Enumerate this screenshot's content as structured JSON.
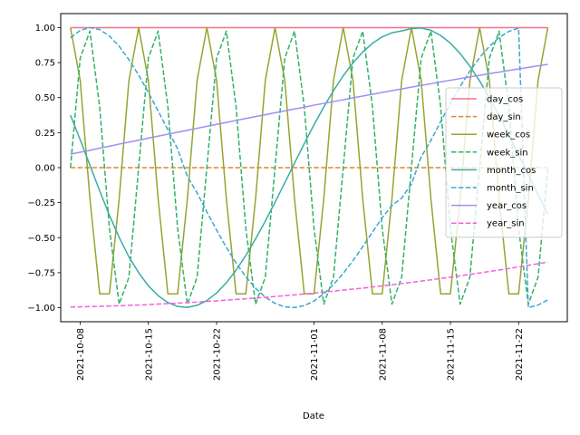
{
  "chart_data": {
    "type": "line",
    "title": "",
    "xlabel": "Date",
    "ylabel": "",
    "x_start": "2021-10-07",
    "x_end": "2021-11-25",
    "xlim": [
      "2021-10-06",
      "2021-11-27"
    ],
    "ylim": [
      -1.1,
      1.1
    ],
    "x_ticks": [
      "2021-10-08",
      "2021-10-15",
      "2021-10-22",
      "2021-11-01",
      "2021-11-08",
      "2021-11-15",
      "2021-11-22"
    ],
    "y_ticks": [
      "1.00",
      "0.75",
      "0.50",
      "0.25",
      "0.00",
      "−0.25",
      "−0.50",
      "−0.75",
      "−1.00"
    ],
    "grid": false,
    "legend_position": "center-right",
    "series": [
      {
        "name": "day_cos",
        "color": "#f77189",
        "dash": "solid",
        "values": [
          1,
          1,
          1,
          1,
          1,
          1,
          1,
          1,
          1,
          1,
          1,
          1,
          1,
          1,
          1,
          1,
          1,
          1,
          1,
          1,
          1,
          1,
          1,
          1,
          1,
          1,
          1,
          1,
          1,
          1,
          1,
          1,
          1,
          1,
          1,
          1,
          1,
          1,
          1,
          1,
          1,
          1,
          1,
          1,
          1,
          1,
          1,
          1,
          1,
          1
        ]
      },
      {
        "name": "day_sin",
        "color": "#dc8932",
        "dash": "dashed",
        "values": [
          0,
          0,
          0,
          0,
          0,
          0,
          0,
          0,
          0,
          0,
          0,
          0,
          0,
          0,
          0,
          0,
          0,
          0,
          0,
          0,
          0,
          0,
          0,
          0,
          0,
          0,
          0,
          0,
          0,
          0,
          0,
          0,
          0,
          0,
          0,
          0,
          0,
          0,
          0,
          0,
          0,
          0,
          0,
          0,
          0,
          0,
          0,
          0,
          0,
          0
        ]
      },
      {
        "name": "week_cos",
        "color": "#97a431",
        "dash": "solid",
        "values": [
          1.0,
          0.623,
          -0.223,
          -0.901,
          -0.901,
          -0.223,
          0.623,
          1.0,
          0.623,
          -0.223,
          -0.901,
          -0.901,
          -0.223,
          0.623,
          1.0,
          0.623,
          -0.223,
          -0.901,
          -0.901,
          -0.223,
          0.623,
          1.0,
          0.623,
          -0.223,
          -0.901,
          -0.901,
          -0.223,
          0.623,
          1.0,
          0.623,
          -0.223,
          -0.901,
          -0.901,
          -0.223,
          0.623,
          1.0,
          0.623,
          -0.223,
          -0.901,
          -0.901,
          -0.223,
          0.623,
          1.0,
          0.623,
          -0.223,
          -0.901,
          -0.901,
          -0.223,
          0.623,
          1.0
        ]
      },
      {
        "name": "week_sin",
        "color": "#32b166",
        "dash": "dashed",
        "values": [
          0.0,
          0.782,
          0.975,
          0.434,
          -0.434,
          -0.975,
          -0.782,
          0.0,
          0.782,
          0.975,
          0.434,
          -0.434,
          -0.975,
          -0.782,
          0.0,
          0.782,
          0.975,
          0.434,
          -0.434,
          -0.975,
          -0.782,
          0.0,
          0.782,
          0.975,
          0.434,
          -0.434,
          -0.975,
          -0.782,
          0.0,
          0.782,
          0.975,
          0.434,
          -0.434,
          -0.975,
          -0.782,
          0.0,
          0.782,
          0.975,
          0.434,
          -0.434,
          -0.975,
          -0.782,
          0.0,
          0.782,
          0.975,
          0.434,
          -0.434,
          -0.975,
          -0.782,
          0.0
        ]
      },
      {
        "name": "month_cos",
        "color": "#36ada4",
        "dash": "solid",
        "values": [
          0.375,
          0.199,
          0.017,
          -0.166,
          -0.34,
          -0.498,
          -0.637,
          -0.75,
          -0.844,
          -0.914,
          -0.963,
          -0.991,
          -0.998,
          -0.983,
          -0.949,
          -0.895,
          -0.822,
          -0.732,
          -0.627,
          -0.509,
          -0.382,
          -0.247,
          -0.108,
          0.033,
          0.172,
          0.306,
          0.433,
          0.55,
          0.656,
          0.748,
          0.826,
          0.888,
          0.934,
          0.963,
          0.976,
          0.993,
          0.997,
          0.981,
          0.944,
          0.889,
          0.815,
          0.724,
          0.619,
          0.5,
          0.37,
          0.233,
          0.091,
          -0.052,
          -0.194,
          -0.33
        ]
      },
      {
        "name": "month_sin",
        "color": "#39a7d0",
        "dash": "dashed",
        "values": [
          0.927,
          0.98,
          1.0,
          0.986,
          0.94,
          0.867,
          0.771,
          0.661,
          0.536,
          0.405,
          0.27,
          0.134,
          -0.063,
          -0.18,
          -0.315,
          -0.446,
          -0.569,
          -0.681,
          -0.779,
          -0.861,
          -0.924,
          -0.969,
          -0.994,
          -0.999,
          -0.985,
          -0.952,
          -0.901,
          -0.835,
          -0.755,
          -0.664,
          -0.564,
          -0.46,
          -0.358,
          -0.27,
          -0.217,
          -0.118,
          0.077,
          0.194,
          0.329,
          0.458,
          0.579,
          0.69,
          0.785,
          0.866,
          0.929,
          0.973,
          0.996,
          -0.999,
          -0.981,
          -0.944
        ]
      },
      {
        "name": "year_cos",
        "color": "#a48cf4",
        "dash": "solid",
        "values": [
          0.096,
          0.11,
          0.124,
          0.139,
          0.153,
          0.168,
          0.182,
          0.196,
          0.211,
          0.225,
          0.239,
          0.253,
          0.267,
          0.281,
          0.295,
          0.309,
          0.323,
          0.337,
          0.351,
          0.365,
          0.378,
          0.392,
          0.405,
          0.419,
          0.432,
          0.446,
          0.459,
          0.472,
          0.485,
          0.498,
          0.511,
          0.524,
          0.537,
          0.55,
          0.562,
          0.575,
          0.587,
          0.599,
          0.612,
          0.624,
          0.636,
          0.648,
          0.659,
          0.671,
          0.682,
          0.694,
          0.705,
          0.716,
          0.727,
          0.738
        ]
      },
      {
        "name": "year_sin",
        "color": "#f561dd",
        "dash": "dashed",
        "values": [
          -0.995,
          -0.994,
          -0.992,
          -0.99,
          -0.988,
          -0.986,
          -0.983,
          -0.981,
          -0.978,
          -0.974,
          -0.971,
          -0.967,
          -0.964,
          -0.96,
          -0.955,
          -0.951,
          -0.946,
          -0.941,
          -0.936,
          -0.931,
          -0.926,
          -0.92,
          -0.914,
          -0.908,
          -0.902,
          -0.895,
          -0.888,
          -0.882,
          -0.874,
          -0.867,
          -0.86,
          -0.852,
          -0.844,
          -0.836,
          -0.827,
          -0.819,
          -0.81,
          -0.801,
          -0.791,
          -0.782,
          -0.772,
          -0.762,
          -0.752,
          -0.741,
          -0.731,
          -0.72,
          -0.709,
          -0.697,
          -0.686,
          -0.674
        ]
      }
    ]
  }
}
